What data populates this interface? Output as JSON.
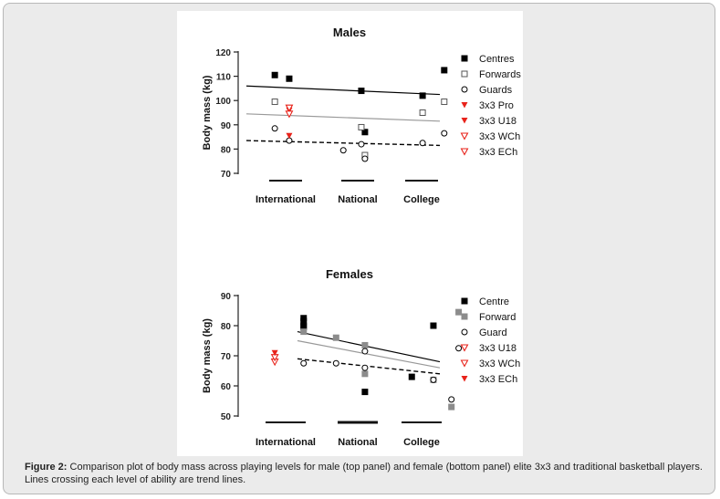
{
  "caption": {
    "label": "Figure 2:",
    "text": "Comparison plot of body mass across playing levels for male (top panel) and female (bottom panel) elite 3x3 and traditional basketball players. Lines crossing each level of ability are trend lines."
  },
  "chart_data": [
    {
      "type": "scatter",
      "title": "Males",
      "ylabel": "Body mass (kg)",
      "xlabel": "",
      "ylim": [
        70,
        120
      ],
      "yticks": [
        70,
        80,
        90,
        100,
        110,
        120
      ],
      "categories": [
        "International",
        "National",
        "College"
      ],
      "legend_position": "right",
      "series": [
        {
          "name": "Centres",
          "marker": "square-filled",
          "color": "#000000",
          "points": [
            {
              "x": 0.85,
              "y": 110.5
            },
            {
              "x": 1.05,
              "y": 109
            },
            {
              "x": 2.05,
              "y": 104
            },
            {
              "x": 2.1,
              "y": 87
            },
            {
              "x": 2.9,
              "y": 102
            },
            {
              "x": 3.2,
              "y": 112.5
            }
          ]
        },
        {
          "name": "Forwards",
          "marker": "square-open",
          "color": "#555555",
          "points": [
            {
              "x": 0.85,
              "y": 99.5
            },
            {
              "x": 2.05,
              "y": 89
            },
            {
              "x": 2.1,
              "y": 77.5
            },
            {
              "x": 2.9,
              "y": 95
            },
            {
              "x": 3.2,
              "y": 99.5
            }
          ]
        },
        {
          "name": "Guards",
          "marker": "circle-open",
          "color": "#000000",
          "points": [
            {
              "x": 0.85,
              "y": 88.5
            },
            {
              "x": 1.05,
              "y": 83.5
            },
            {
              "x": 1.8,
              "y": 79.5
            },
            {
              "x": 2.05,
              "y": 82
            },
            {
              "x": 2.1,
              "y": 76
            },
            {
              "x": 2.9,
              "y": 82.5
            },
            {
              "x": 3.2,
              "y": 86.5
            }
          ]
        },
        {
          "name": "3x3 Pro",
          "marker": "triangle-down-filled",
          "color": "#e8231b",
          "points": [
            {
              "x": 1.05,
              "y": 96
            }
          ]
        },
        {
          "name": "3x3 U18",
          "marker": "triangle-down-filled",
          "color": "#e8231b",
          "points": [
            {
              "x": 1.05,
              "y": 85.5
            }
          ]
        },
        {
          "name": "3x3 WCh",
          "marker": "triangle-down-open",
          "color": "#e8231b",
          "points": [
            {
              "x": 1.05,
              "y": 97
            }
          ]
        },
        {
          "name": "3x3 ECh",
          "marker": "triangle-down-open",
          "color": "#e8231b",
          "points": [
            {
              "x": 1.05,
              "y": 94.5
            }
          ]
        }
      ],
      "trend_lines": [
        {
          "name": "Centres trend",
          "style": "solid",
          "color": "#000000",
          "y_start": 106,
          "y_end": 102.5
        },
        {
          "name": "Forwards trend",
          "style": "solid",
          "color": "#999999",
          "y_start": 94.5,
          "y_end": 91.5
        },
        {
          "name": "Guards trend",
          "style": "dashed",
          "color": "#000000",
          "y_start": 83.5,
          "y_end": 81.5
        }
      ]
    },
    {
      "type": "scatter",
      "title": "Females",
      "ylabel": "Body mass (kg)",
      "xlabel": "",
      "ylim": [
        50,
        90
      ],
      "yticks": [
        50,
        60,
        70,
        80,
        90
      ],
      "categories": [
        "International",
        "National",
        "College"
      ],
      "legend_position": "right",
      "series": [
        {
          "name": "Centre",
          "marker": "square-filled",
          "color": "#000000",
          "points": [
            {
              "x": 1.25,
              "y": 82.5
            },
            {
              "x": 1.25,
              "y": 81.5
            },
            {
              "x": 1.25,
              "y": 80
            },
            {
              "x": 1.25,
              "y": 79.5
            },
            {
              "x": 2.1,
              "y": 58
            },
            {
              "x": 2.75,
              "y": 63
            },
            {
              "x": 3.05,
              "y": 80
            }
          ]
        },
        {
          "name": "Forward",
          "marker": "square-filled",
          "color": "#8c8c8c",
          "points": [
            {
              "x": 1.25,
              "y": 78
            },
            {
              "x": 1.7,
              "y": 76
            },
            {
              "x": 2.1,
              "y": 73.5
            },
            {
              "x": 2.1,
              "y": 64
            },
            {
              "x": 3.05,
              "y": 62
            },
            {
              "x": 3.3,
              "y": 53
            },
            {
              "x": 3.4,
              "y": 84.5
            }
          ]
        },
        {
          "name": "Guard",
          "marker": "circle-open",
          "color": "#000000",
          "points": [
            {
              "x": 1.25,
              "y": 67.5
            },
            {
              "x": 1.7,
              "y": 67.5
            },
            {
              "x": 2.1,
              "y": 71.5
            },
            {
              "x": 2.1,
              "y": 66
            },
            {
              "x": 3.05,
              "y": 62
            },
            {
              "x": 3.3,
              "y": 55.5
            },
            {
              "x": 3.4,
              "y": 72.5
            }
          ]
        },
        {
          "name": "3x3 U18",
          "marker": "triangle-down-open",
          "color": "#e8231b",
          "points": [
            {
              "x": 0.85,
              "y": 68
            }
          ]
        },
        {
          "name": "3x3 WCh",
          "marker": "triangle-down-open",
          "color": "#e8231b",
          "points": [
            {
              "x": 0.85,
              "y": 69.5
            }
          ]
        },
        {
          "name": "3x3 ECh",
          "marker": "triangle-down-filled",
          "color": "#e8231b",
          "points": [
            {
              "x": 0.85,
              "y": 71
            }
          ]
        }
      ],
      "trend_lines": [
        {
          "name": "Centre trend",
          "style": "solid",
          "color": "#000000",
          "y_start": 78,
          "y_end": 68
        },
        {
          "name": "Forward trend",
          "style": "solid",
          "color": "#999999",
          "y_start": 75,
          "y_end": 66
        },
        {
          "name": "Guard trend",
          "style": "dashed",
          "color": "#000000",
          "y_start": 69,
          "y_end": 64
        }
      ]
    }
  ]
}
